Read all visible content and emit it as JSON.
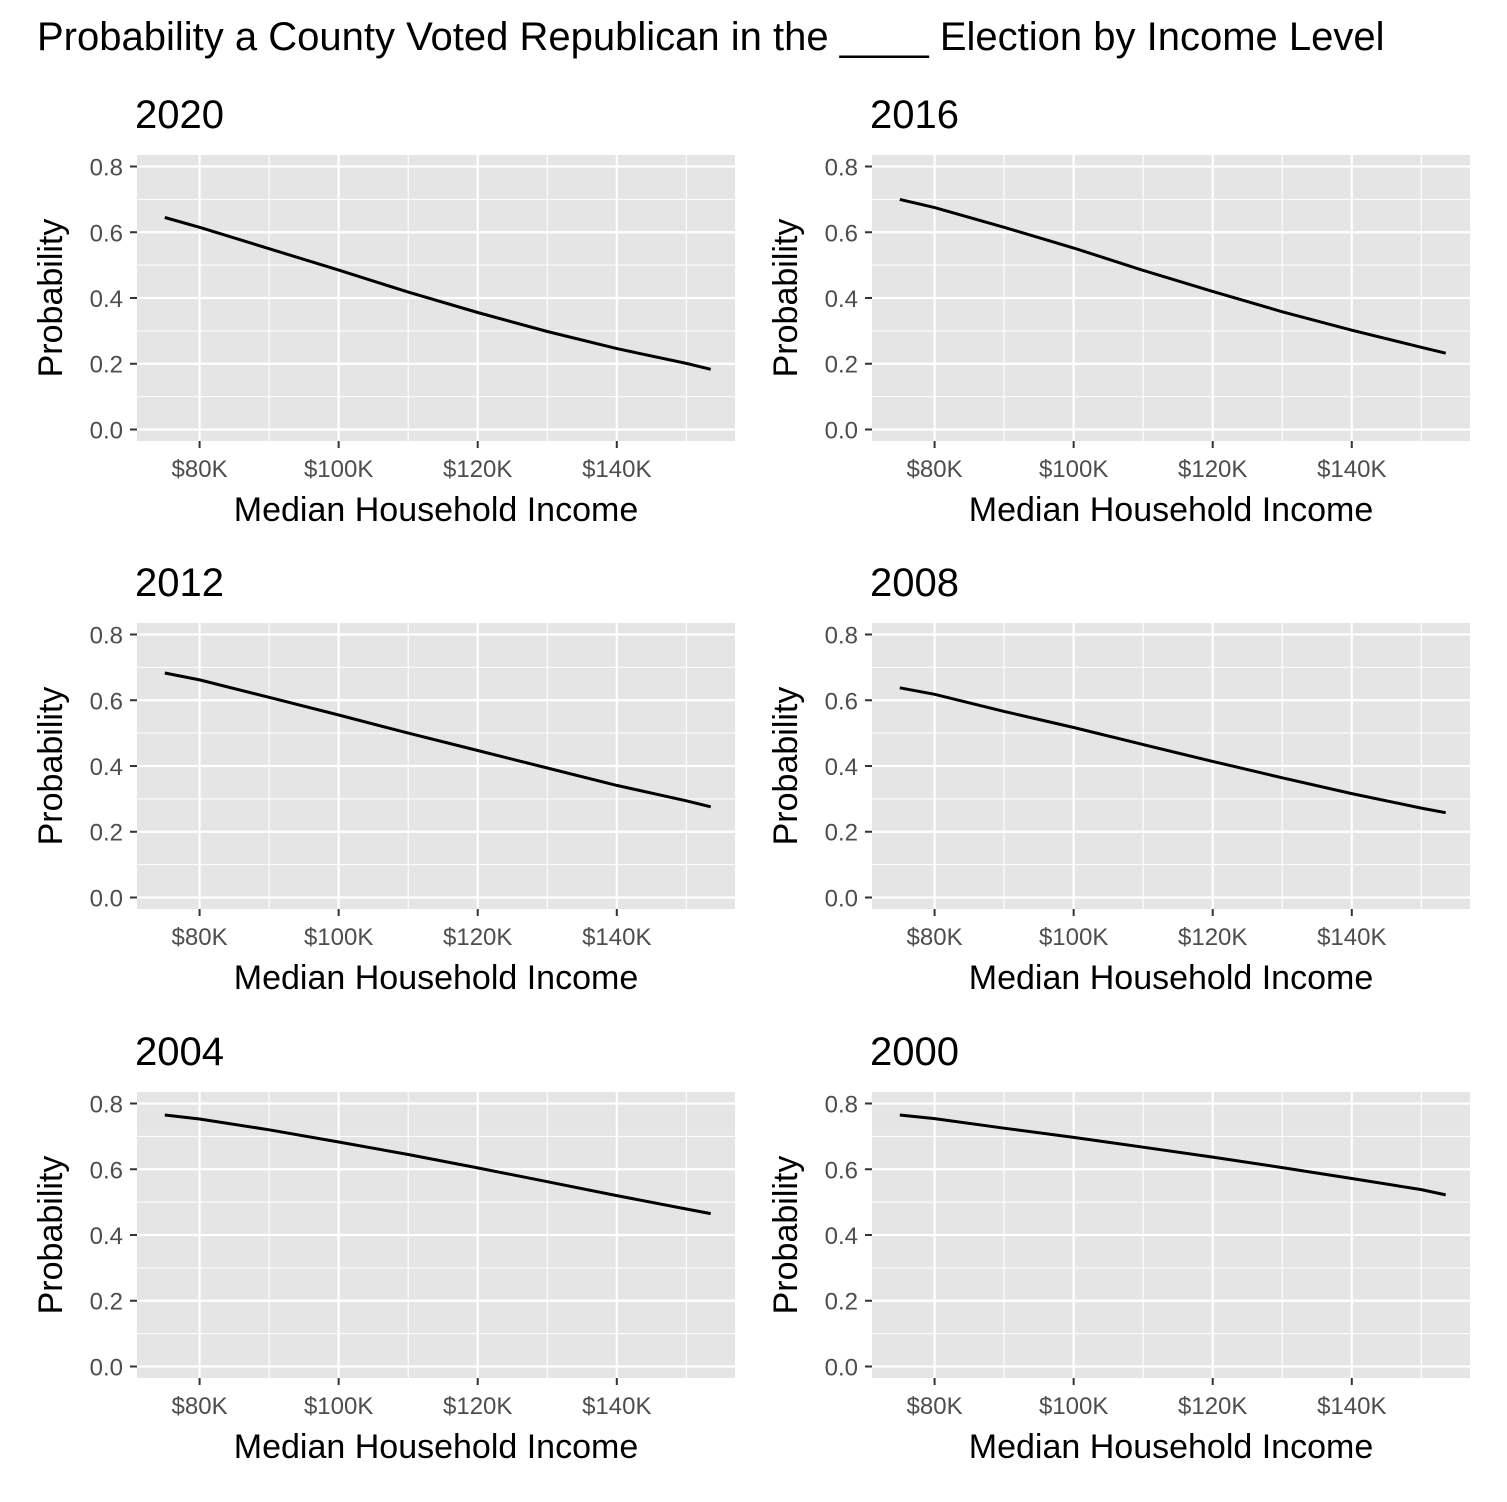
{
  "figure": {
    "title": "Probability a County Voted Republican in the ____ Election by Income Level"
  },
  "colors": {
    "panel_background": "#e5e5e5",
    "grid": "#ffffff",
    "line": "#000000",
    "tick_label": "#4d4d4d",
    "text": "#000000"
  },
  "chart_data": [
    {
      "type": "line",
      "title": "2020",
      "xlabel": "Median Household Income",
      "ylabel": "Probability",
      "xlim": [
        71000,
        157000
      ],
      "ylim": [
        -0.035,
        0.835
      ],
      "x_ticks": [
        80000,
        100000,
        120000,
        140000
      ],
      "x_tick_labels": [
        "$80K",
        "$100K",
        "$120K",
        "$140K"
      ],
      "y_ticks": [
        0.0,
        0.2,
        0.4,
        0.6,
        0.8
      ],
      "y_tick_labels": [
        "0.0",
        "0.2",
        "0.4",
        "0.6",
        "0.8"
      ],
      "grid": true,
      "x": [
        75000,
        80000,
        90000,
        100000,
        110000,
        120000,
        130000,
        140000,
        150000,
        153500
      ],
      "y": [
        0.645,
        0.615,
        0.55,
        0.485,
        0.418,
        0.356,
        0.298,
        0.246,
        0.201,
        0.183
      ]
    },
    {
      "type": "line",
      "title": "2016",
      "xlabel": "Median Household Income",
      "ylabel": "Probability",
      "xlim": [
        71000,
        157000
      ],
      "ylim": [
        -0.035,
        0.835
      ],
      "x_ticks": [
        80000,
        100000,
        120000,
        140000
      ],
      "x_tick_labels": [
        "$80K",
        "$100K",
        "$120K",
        "$140K"
      ],
      "y_ticks": [
        0.0,
        0.2,
        0.4,
        0.6,
        0.8
      ],
      "y_tick_labels": [
        "0.0",
        "0.2",
        "0.4",
        "0.6",
        "0.8"
      ],
      "grid": true,
      "x": [
        75000,
        80000,
        90000,
        100000,
        110000,
        120000,
        130000,
        140000,
        150000,
        153500
      ],
      "y": [
        0.7,
        0.675,
        0.615,
        0.552,
        0.484,
        0.42,
        0.358,
        0.302,
        0.25,
        0.232
      ]
    },
    {
      "type": "line",
      "title": "2012",
      "xlabel": "Median Household Income",
      "ylabel": "Probability",
      "xlim": [
        71000,
        157000
      ],
      "ylim": [
        -0.035,
        0.835
      ],
      "x_ticks": [
        80000,
        100000,
        120000,
        140000
      ],
      "x_tick_labels": [
        "$80K",
        "$100K",
        "$120K",
        "$140K"
      ],
      "y_ticks": [
        0.0,
        0.2,
        0.4,
        0.6,
        0.8
      ],
      "y_tick_labels": [
        "0.0",
        "0.2",
        "0.4",
        "0.6",
        "0.8"
      ],
      "grid": true,
      "x": [
        75000,
        80000,
        90000,
        100000,
        110000,
        120000,
        130000,
        140000,
        150000,
        153500
      ],
      "y": [
        0.683,
        0.662,
        0.609,
        0.555,
        0.5,
        0.447,
        0.394,
        0.341,
        0.294,
        0.276
      ]
    },
    {
      "type": "line",
      "title": "2008",
      "xlabel": "Median Household Income",
      "ylabel": "Probability",
      "xlim": [
        71000,
        157000
      ],
      "ylim": [
        -0.035,
        0.835
      ],
      "x_ticks": [
        80000,
        100000,
        120000,
        140000
      ],
      "x_tick_labels": [
        "$80K",
        "$100K",
        "$120K",
        "$140K"
      ],
      "y_ticks": [
        0.0,
        0.2,
        0.4,
        0.6,
        0.8
      ],
      "y_tick_labels": [
        "0.0",
        "0.2",
        "0.4",
        "0.6",
        "0.8"
      ],
      "grid": true,
      "x": [
        75000,
        80000,
        90000,
        100000,
        110000,
        120000,
        130000,
        140000,
        150000,
        153500
      ],
      "y": [
        0.638,
        0.618,
        0.566,
        0.517,
        0.465,
        0.414,
        0.364,
        0.316,
        0.272,
        0.258
      ]
    },
    {
      "type": "line",
      "title": "2004",
      "xlabel": "Median Household Income",
      "ylabel": "Probability",
      "xlim": [
        71000,
        157000
      ],
      "ylim": [
        -0.035,
        0.835
      ],
      "x_ticks": [
        80000,
        100000,
        120000,
        140000
      ],
      "x_tick_labels": [
        "$80K",
        "$100K",
        "$120K",
        "$140K"
      ],
      "y_ticks": [
        0.0,
        0.2,
        0.4,
        0.6,
        0.8
      ],
      "y_tick_labels": [
        "0.0",
        "0.2",
        "0.4",
        "0.6",
        "0.8"
      ],
      "grid": true,
      "x": [
        75000,
        80000,
        90000,
        100000,
        110000,
        120000,
        130000,
        140000,
        150000,
        153500
      ],
      "y": [
        0.765,
        0.753,
        0.72,
        0.683,
        0.645,
        0.604,
        0.562,
        0.52,
        0.479,
        0.465
      ]
    },
    {
      "type": "line",
      "title": "2000",
      "xlabel": "Median Household Income",
      "ylabel": "Probability",
      "xlim": [
        71000,
        157000
      ],
      "ylim": [
        -0.035,
        0.835
      ],
      "x_ticks": [
        80000,
        100000,
        120000,
        140000
      ],
      "x_tick_labels": [
        "$80K",
        "$100K",
        "$120K",
        "$140K"
      ],
      "y_ticks": [
        0.0,
        0.2,
        0.4,
        0.6,
        0.8
      ],
      "y_tick_labels": [
        "0.0",
        "0.2",
        "0.4",
        "0.6",
        "0.8"
      ],
      "grid": true,
      "x": [
        75000,
        80000,
        90000,
        100000,
        110000,
        120000,
        130000,
        140000,
        150000,
        153500
      ],
      "y": [
        0.765,
        0.754,
        0.725,
        0.697,
        0.667,
        0.637,
        0.605,
        0.572,
        0.538,
        0.522
      ]
    }
  ]
}
